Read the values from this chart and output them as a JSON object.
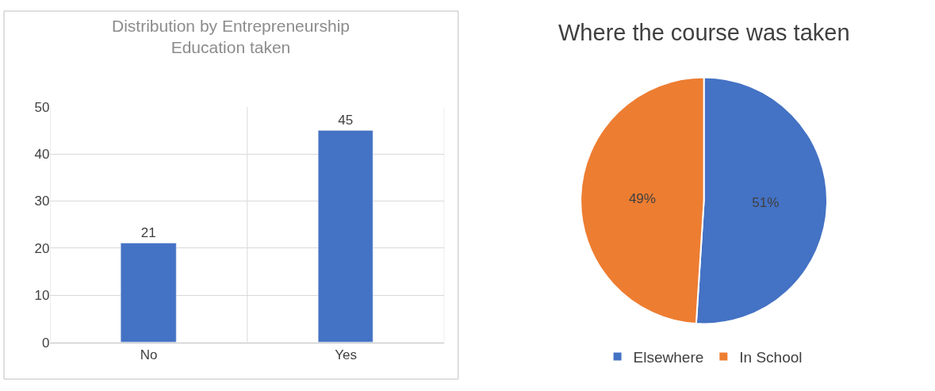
{
  "chart_data": [
    {
      "type": "bar",
      "title": "Distribution by Entrepreneurship\nEducation taken",
      "categories": [
        "No",
        "Yes"
      ],
      "values": [
        21,
        45
      ],
      "color": "#4472c4",
      "ylim": [
        0,
        50
      ],
      "yticks": [
        0,
        10,
        20,
        30,
        40,
        50
      ],
      "grid": true,
      "data_labels": true,
      "legend": false
    },
    {
      "type": "pie",
      "title": "Where the course was taken",
      "categories": [
        "Elsewhere",
        "In School"
      ],
      "values": [
        51,
        49
      ],
      "colors": [
        "#4472c4",
        "#ed7d31"
      ],
      "value_labels": [
        "51%",
        "49%"
      ],
      "legend": "bottom"
    }
  ]
}
